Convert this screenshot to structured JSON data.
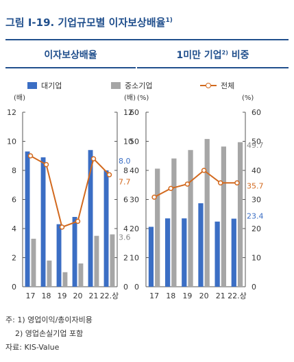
{
  "figure": {
    "title": "그림 Ⅰ-19. 기업규모별 이자보상배율",
    "title_sup": "1)",
    "notes": [
      "주: 1) 영업이익/총이자비용",
      "2) 영업손실기업 포함"
    ],
    "source": "자료: KIS-Value"
  },
  "legend": {
    "large": "대기업",
    "sme": "중소기업",
    "total": "전체"
  },
  "colors": {
    "large": "#3b6ec4",
    "sme": "#a6a6a6",
    "total": "#d2691e",
    "title": "#1f4e8c"
  },
  "chart_data": [
    {
      "type": "bar",
      "title": "이자보상배율",
      "categories": [
        "17",
        "18",
        "19",
        "20",
        "21",
        "22.상"
      ],
      "ylabel_left": "(배)",
      "ylabel_right": "(배)",
      "ylim": [
        0,
        12
      ],
      "yticks": [
        0,
        2,
        4,
        6,
        8,
        10,
        12
      ],
      "series": [
        {
          "name": "대기업",
          "kind": "bar",
          "values": [
            9.3,
            8.9,
            4.3,
            4.8,
            9.4,
            8.0
          ]
        },
        {
          "name": "중소기업",
          "kind": "bar",
          "values": [
            3.3,
            1.8,
            1.0,
            1.6,
            3.5,
            3.6
          ]
        },
        {
          "name": "전체",
          "kind": "line",
          "values": [
            9.0,
            8.4,
            4.1,
            4.5,
            8.8,
            7.7
          ]
        }
      ],
      "end_labels": [
        {
          "series": "대기업",
          "text": "8.0"
        },
        {
          "series": "전체",
          "text": "7.7"
        },
        {
          "series": "중소기업",
          "text": "3.6"
        }
      ]
    },
    {
      "type": "bar",
      "title": "1미만 기업",
      "title_sup": "2)",
      "title_suffix": " 비중",
      "categories": [
        "17",
        "18",
        "19",
        "20",
        "21",
        "22.상"
      ],
      "ylabel_left": "(%)",
      "ylabel_right": "(%)",
      "ylim": [
        0,
        60
      ],
      "yticks": [
        0,
        10,
        20,
        30,
        40,
        50,
        60
      ],
      "right_ylim": [
        0,
        60
      ],
      "right_yticks": [
        0,
        10,
        20,
        30,
        40,
        50,
        60
      ],
      "series": [
        {
          "name": "대기업",
          "kind": "bar",
          "values": [
            20.6,
            23.5,
            23.5,
            28.7,
            22.4,
            23.4
          ]
        },
        {
          "name": "중소기업",
          "kind": "bar",
          "values": [
            40.6,
            44.1,
            47.0,
            50.8,
            48.2,
            49.7
          ]
        },
        {
          "name": "전체",
          "kind": "line",
          "values": [
            30.8,
            33.8,
            35.3,
            40.0,
            35.7,
            35.7
          ]
        }
      ],
      "end_labels": [
        {
          "series": "중소기업",
          "text": "49.7"
        },
        {
          "series": "전체",
          "text": "35.7"
        },
        {
          "series": "대기업",
          "text": "23.4"
        }
      ]
    }
  ]
}
